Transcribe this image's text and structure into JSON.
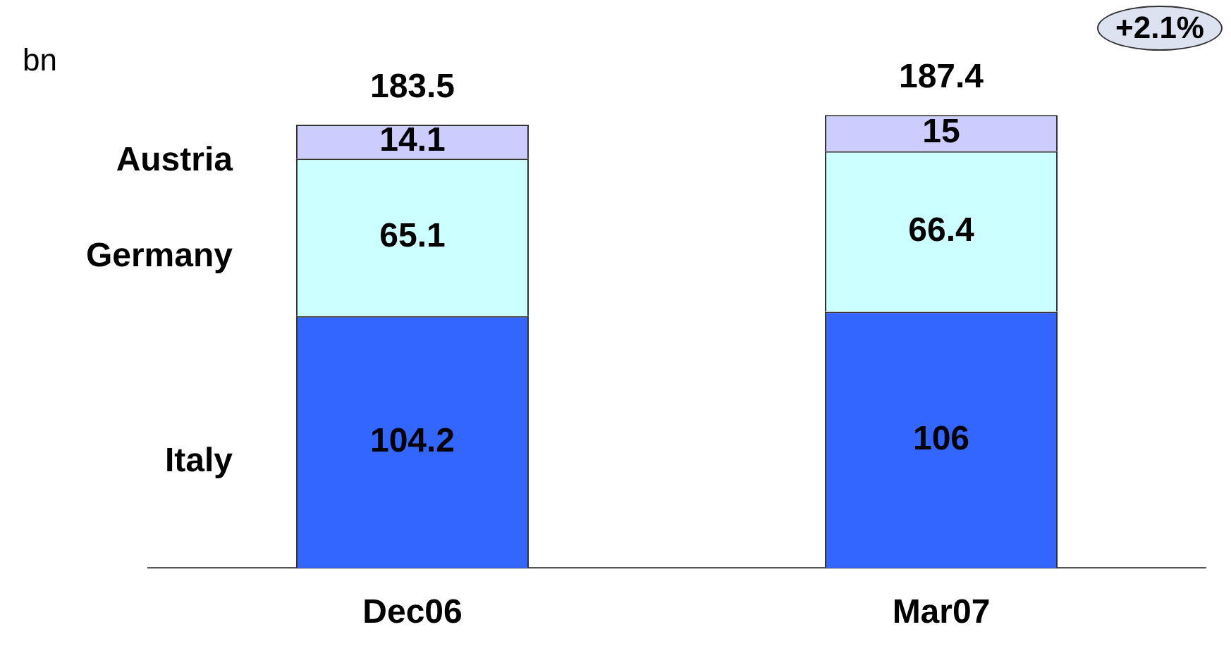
{
  "chart_data": {
    "type": "bar",
    "stacked": true,
    "ylabel": "bn",
    "categories": [
      "Dec06",
      "Mar07"
    ],
    "series": [
      {
        "name": "Italy",
        "color": "#3366ff",
        "values": [
          104.2,
          106
        ]
      },
      {
        "name": "Germany",
        "color": "#ccffff",
        "values": [
          65.1,
          66.4
        ]
      },
      {
        "name": "Austria",
        "color": "#ccccff",
        "values": [
          14.1,
          15
        ]
      }
    ],
    "data_labels": true,
    "totals": [
      "183.5",
      "187.4"
    ],
    "annotations": [
      "+2.1%"
    ],
    "legend": false,
    "grid": false
  }
}
